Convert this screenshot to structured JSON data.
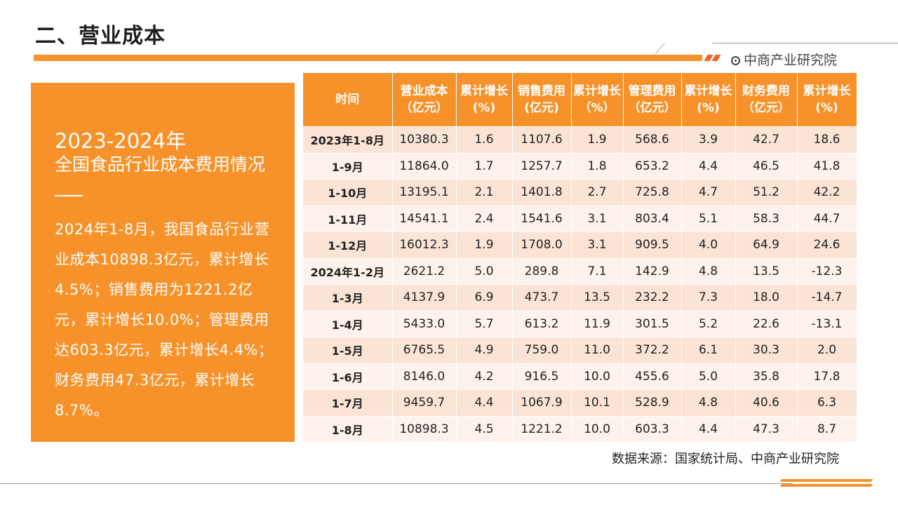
{
  "header": {
    "title": "二、营业成本",
    "brand": "中商产业研究院"
  },
  "panel": {
    "year": "2023-2024年",
    "subtitle": "全国食品行业成本费用情况",
    "description": "2024年1-8月，我国食品行业营业成本10898.3亿元，累计增长4.5%；销售费用为1221.2亿元，累计增长10.0%；管理费用达603.3亿元，累计增长4.4%；财务费用47.3亿元，累计增长8.7%。"
  },
  "table": {
    "headers": [
      "时间",
      "营业成本（亿元）",
      "累计增长(%)",
      "销售费用(亿元)",
      "累计增长（%）",
      "管理费用（亿元）",
      "累计增长(%)",
      "财务费用（亿元）",
      "累计增长(%)"
    ],
    "rows": [
      [
        "2023年1-8月",
        "10380.3",
        "1.6",
        "1107.6",
        "1.9",
        "568.6",
        "3.9",
        "42.7",
        "18.6"
      ],
      [
        "1-9月",
        "11864.0",
        "1.7",
        "1257.7",
        "1.8",
        "653.2",
        "4.4",
        "46.5",
        "41.8"
      ],
      [
        "1-10月",
        "13195.1",
        "2.1",
        "1401.8",
        "2.7",
        "725.8",
        "4.7",
        "51.2",
        "42.2"
      ],
      [
        "1-11月",
        "14541.1",
        "2.4",
        "1541.6",
        "3.1",
        "803.4",
        "5.1",
        "58.3",
        "44.7"
      ],
      [
        "1-12月",
        "16012.3",
        "1.9",
        "1708.0",
        "3.1",
        "909.5",
        "4.0",
        "64.9",
        "24.6"
      ],
      [
        "2024年1-2月",
        "2621.2",
        "5.0",
        "289.8",
        "7.1",
        "142.9",
        "4.8",
        "13.5",
        "-12.3"
      ],
      [
        "1-3月",
        "4137.9",
        "6.9",
        "473.7",
        "13.5",
        "232.2",
        "7.3",
        "18.0",
        "-14.7"
      ],
      [
        "1-4月",
        "5433.0",
        "5.7",
        "613.2",
        "11.9",
        "301.5",
        "5.2",
        "22.6",
        "-13.1"
      ],
      [
        "1-5月",
        "6765.5",
        "4.9",
        "759.0",
        "11.0",
        "372.2",
        "6.1",
        "30.3",
        "2.0"
      ],
      [
        "1-6月",
        "8146.0",
        "4.2",
        "916.5",
        "10.0",
        "455.6",
        "5.0",
        "35.8",
        "17.8"
      ],
      [
        "1-7月",
        "9459.7",
        "4.4",
        "1067.9",
        "10.1",
        "528.9",
        "4.8",
        "40.6",
        "6.3"
      ],
      [
        "1-8月",
        "10898.3",
        "4.5",
        "1221.2",
        "10.0",
        "603.3",
        "4.4",
        "47.3",
        "8.7"
      ]
    ]
  },
  "source": "数据来源：国家统计局、中商产业研究院",
  "colors": {
    "accent": "#f7922a",
    "row_odd": "#fbe4d6",
    "row_even": "#fdf3ec"
  }
}
